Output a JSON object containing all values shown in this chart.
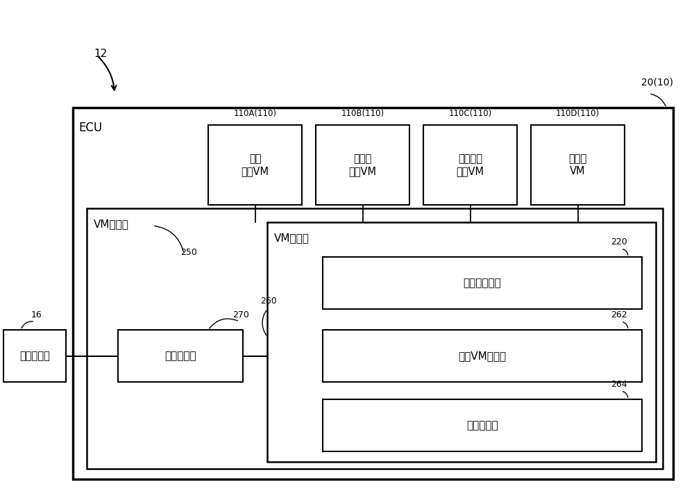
{
  "bg_color": "#ffffff",
  "line_color": "#000000",
  "box_fill": "#ffffff",
  "fig_width": 10.0,
  "fig_height": 7.2,
  "labels": {
    "label_12": "12",
    "label_20_10": "20(10)",
    "label_16": "16",
    "label_ecu": "ECU",
    "label_250": "250",
    "label_vm_config": "VM构成部",
    "label_vm_ctrl": "VM控制部",
    "label_260": "260",
    "label_270": "270",
    "label_220": "220",
    "label_262": "262",
    "label_264": "264",
    "label_110A": "110A(110)",
    "label_110B": "110B(110)",
    "label_110C": "110C(110)",
    "label_110D": "110D(110)",
    "box_chache": "车身\n控制VM",
    "box_engine": "发动机\n控制VM",
    "box_auto": "自动驾驶\n控制VM",
    "box_media": "多媒体\nVM",
    "box_state": "状态判定部",
    "box_vehicle": "车载设备集",
    "box_seq": "启动顺序表格",
    "box_vm_judge": "启动VM判断部",
    "box_resource": "资源管理部"
  },
  "font_size_label": 9,
  "font_size_box": 11,
  "font_size_small": 8.5
}
